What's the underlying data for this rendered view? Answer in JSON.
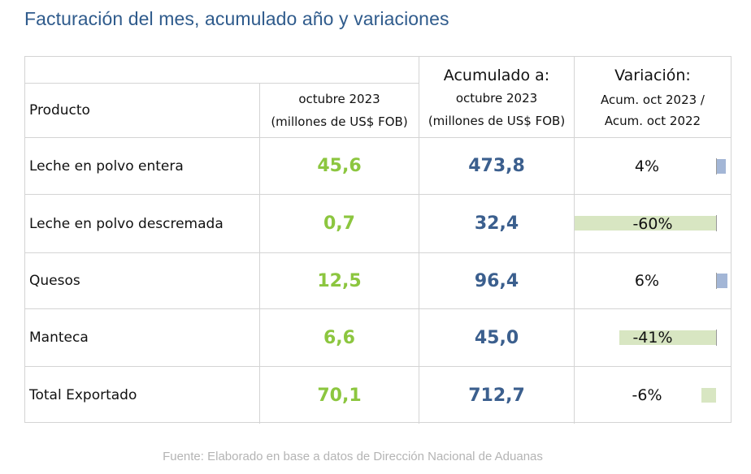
{
  "title": "Facturación del mes, acumulado año y variaciones",
  "header": {
    "product": "Producto",
    "month_top": "octubre 2023",
    "month_bottom": "(millones de US$ FOB)",
    "acum_title": "Acumulado a:",
    "acum_top": "octubre 2023",
    "acum_bottom": "(millones de US$ FOB)",
    "var_title": "Variación:",
    "var_top": "Acum. oct 2023 /",
    "var_bottom": "Acum. oct 2022"
  },
  "rows": [
    {
      "product": "Leche en polvo entera",
      "month": "45,6",
      "acum": "473,8",
      "var": "4%",
      "var_value": 4
    },
    {
      "product": "Leche en polvo descremada",
      "month": "0,7",
      "acum": "32,4",
      "var": "-60%",
      "var_value": -60
    },
    {
      "product": "Quesos",
      "month": "12,5",
      "acum": "96,4",
      "var": "6%",
      "var_value": 6
    },
    {
      "product": "Manteca",
      "month": "6,6",
      "acum": "45,0",
      "var": "-41%",
      "var_value": -41
    },
    {
      "product": "Total Exportado",
      "month": "70,1",
      "acum": "712,7",
      "var": "-6%",
      "var_value": -6
    }
  ],
  "colors": {
    "title": "#2f5b8c",
    "month_values": "#8cc63f",
    "acum_values": "#3b5f8e",
    "negative_bar": "#d8e6c2",
    "positive_bar": "#a3b6d6"
  },
  "source": "Fuente: Elaborado en base a datos de Dirección Nacional de Aduanas"
}
